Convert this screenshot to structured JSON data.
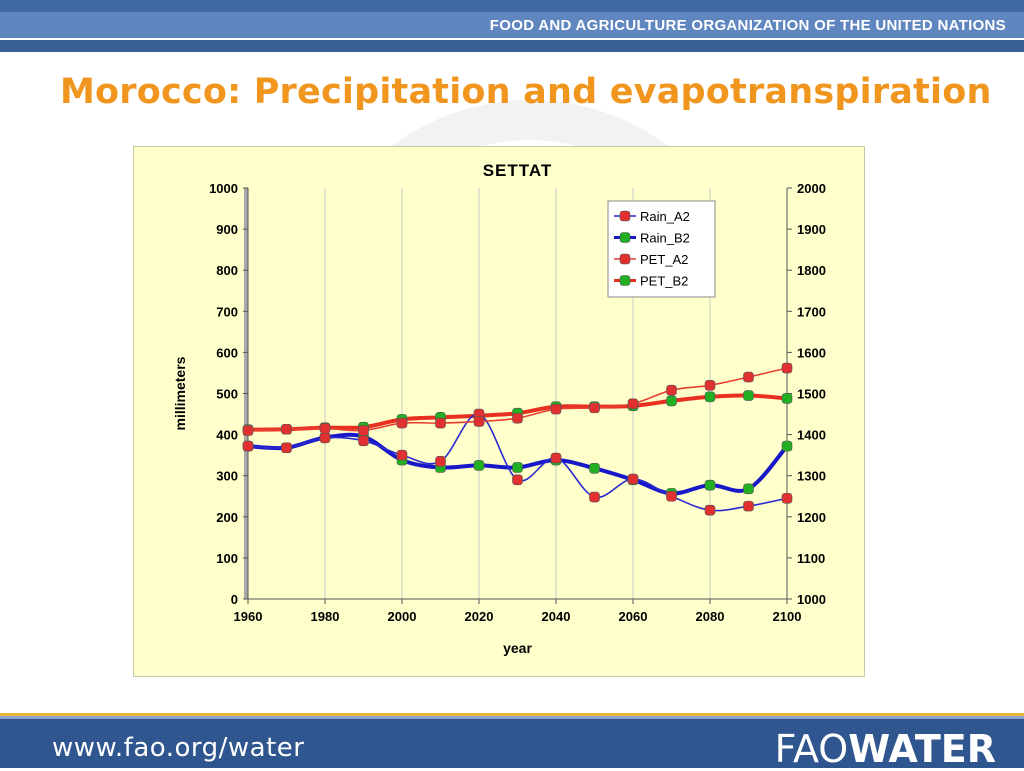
{
  "header": {
    "org_name": "FOOD AND AGRICULTURE ORGANIZATION OF THE UNITED NATIONS"
  },
  "slide": {
    "title": "Morocco: Precipitation and evapotranspiration"
  },
  "footer": {
    "url": "www.fao.org/water",
    "logo_fao": "FAO",
    "logo_water": "WATER"
  },
  "colors": {
    "accent_title": "#f0961e",
    "brand_blue": "#2f568f",
    "chart_bg": "#ffffcc",
    "rain_a2": "#2a2ad0",
    "rain_b2": "#1818c8",
    "pet_a2": "#e84030",
    "pet_b2": "#e83020"
  },
  "chart_data": {
    "type": "line",
    "title": "SETTAT",
    "xlabel": "year",
    "ylabel": "millimeters",
    "x": [
      1960,
      1970,
      1980,
      1990,
      2000,
      2010,
      2020,
      2030,
      2040,
      2050,
      2060,
      2070,
      2080,
      2090,
      2100
    ],
    "xlim": [
      1960,
      2100
    ],
    "ylim": [
      0,
      1000
    ],
    "y2lim": [
      1000,
      2000
    ],
    "xticks": [
      "1960",
      "1980",
      "2000",
      "2020",
      "2040",
      "2060",
      "2080",
      "2100"
    ],
    "yticks": [
      "0",
      "100",
      "200",
      "300",
      "400",
      "500",
      "600",
      "700",
      "800",
      "900",
      "1000"
    ],
    "y2ticks": [
      "1000",
      "1100",
      "1200",
      "1300",
      "1400",
      "1500",
      "1600",
      "1700",
      "1800",
      "1900",
      "2000"
    ],
    "grid": "vertical",
    "legend_position": "top-right",
    "series": [
      {
        "name": "Rain_A2",
        "axis": "left",
        "values": [
          372,
          368,
          392,
          385,
          350,
          335,
          450,
          290,
          343,
          248,
          292,
          250,
          216,
          226,
          245
        ]
      },
      {
        "name": "Rain_B2",
        "axis": "left",
        "values": [
          372,
          368,
          393,
          395,
          338,
          320,
          325,
          320,
          338,
          318,
          290,
          257,
          277,
          268,
          372
        ]
      },
      {
        "name": "PET_A2",
        "axis": "right",
        "values": [
          1410,
          1413,
          1415,
          1410,
          1428,
          1428,
          1432,
          1440,
          1462,
          1465,
          1475,
          1508,
          1520,
          1540,
          1562
        ]
      },
      {
        "name": "PET_B2",
        "axis": "right",
        "values": [
          1412,
          1413,
          1417,
          1418,
          1437,
          1442,
          1446,
          1452,
          1468,
          1468,
          1470,
          1482,
          1492,
          1495,
          1488
        ]
      }
    ]
  }
}
